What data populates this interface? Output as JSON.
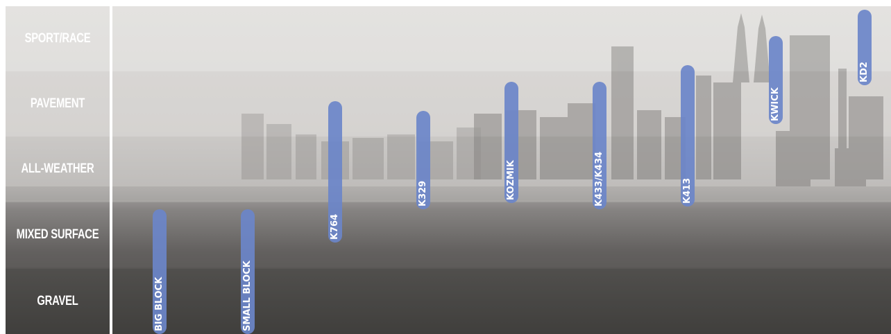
{
  "chart_data": {
    "type": "range",
    "categories": [
      "SPORT/RACE",
      "PAVEMENT",
      "ALL-WEATHER",
      "MIXED SURFACE",
      "GRAVEL"
    ],
    "series": [
      {
        "name": "BIG BLOCK",
        "low": 0.0,
        "high": 1.9
      },
      {
        "name": "SMALL BLOCK",
        "low": 0.0,
        "high": 1.9
      },
      {
        "name": "K764",
        "low": 1.4,
        "high": 3.55
      },
      {
        "name": "K329",
        "low": 1.9,
        "high": 3.4
      },
      {
        "name": "KOZMIK",
        "low": 2.0,
        "high": 3.85
      },
      {
        "name": "K433/K434",
        "low": 1.9,
        "high": 3.85
      },
      {
        "name": "K413",
        "low": 1.95,
        "high": 4.1
      },
      {
        "name": "KWICK",
        "low": 3.2,
        "high": 4.55
      },
      {
        "name": "KD2",
        "low": 3.8,
        "high": 4.95
      }
    ],
    "colors": {
      "bar": "#6b86c9",
      "bands": [
        "#d9d7d5",
        "#c9c7c5",
        "#b8b6b4",
        "#7c7a78",
        "#5a5856"
      ]
    }
  }
}
